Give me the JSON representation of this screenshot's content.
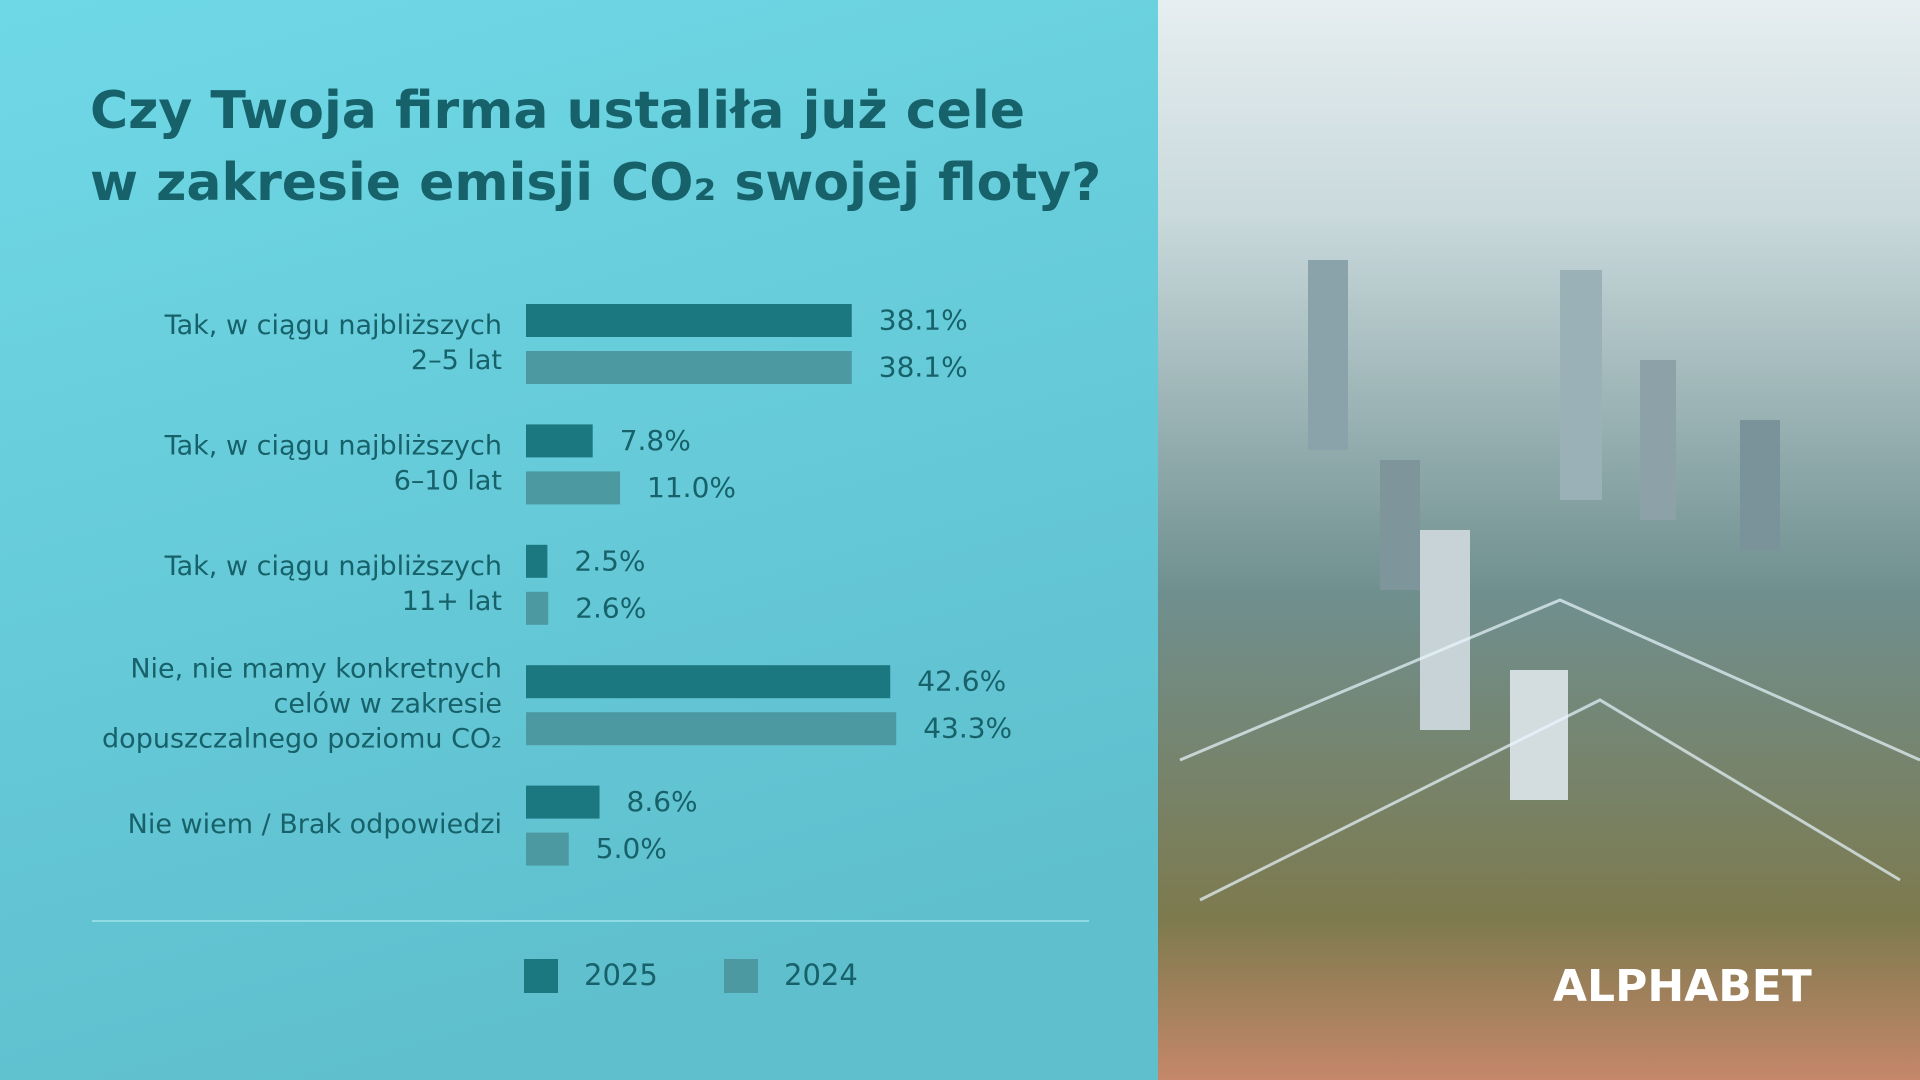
{
  "chart_data": {
    "type": "bar",
    "orientation": "horizontal",
    "title": [
      "Czy Twoja firma ustaliła już cele",
      "w zakresie emisji CO₂ swojej floty?"
    ],
    "categories": [
      [
        "Tak, w ciągu najbliższych",
        "2–5 lat"
      ],
      [
        "Tak, w ciągu najbliższych",
        "6–10 lat"
      ],
      [
        "Tak, w ciągu najbliższych",
        "11+ lat"
      ],
      [
        "Nie, nie mamy konkretnych",
        "celów w zakresie",
        "dopuszczalnego poziomu CO₂"
      ],
      [
        "Nie wiem / Brak odpowiedzi"
      ]
    ],
    "series": [
      {
        "name": "2025",
        "color": "#1b7880",
        "values": [
          38.1,
          7.8,
          2.5,
          42.6,
          8.6
        ],
        "value_labels": [
          "38.1%",
          "7.8%",
          "2.5%",
          "42.6%",
          "8.6%"
        ]
      },
      {
        "name": "2024",
        "color": "#4c99a2",
        "values": [
          38.1,
          11.0,
          2.6,
          43.3,
          5.0
        ],
        "value_labels": [
          "38.1%",
          "11.0%",
          "2.6%",
          "43.3%",
          "5.0%"
        ]
      }
    ],
    "legend": "bottom",
    "brand": "ALPHABET"
  }
}
